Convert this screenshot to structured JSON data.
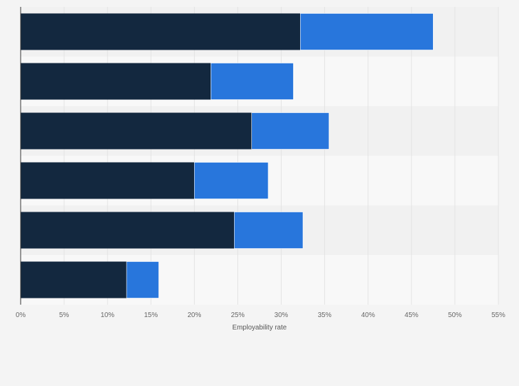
{
  "chart_data": {
    "type": "bar",
    "orientation": "horizontal",
    "stacked": true,
    "title": "",
    "xlabel": "Employability rate",
    "ylabel": "",
    "categories": [
      "",
      "",
      "",
      "",
      "",
      ""
    ],
    "series": [
      {
        "values": [
          32.2,
          21.9,
          26.6,
          20.0,
          24.6,
          12.2
        ]
      },
      {
        "values": [
          15.3,
          9.5,
          8.9,
          8.5,
          7.9,
          3.7
        ]
      }
    ],
    "xlim": [
      0,
      55
    ],
    "xticks": [
      0,
      5,
      10,
      15,
      20,
      25,
      30,
      35,
      40,
      45,
      50,
      55
    ],
    "tick_format": "{v}%",
    "grid": true,
    "legend": "none",
    "colors": {
      "series": [
        "#13283f",
        "#2876dc"
      ],
      "band_dark": "#f1f1f1",
      "band_light": "#f8f8f8",
      "grid": "#e3e3e3",
      "axis": "#333333"
    }
  }
}
